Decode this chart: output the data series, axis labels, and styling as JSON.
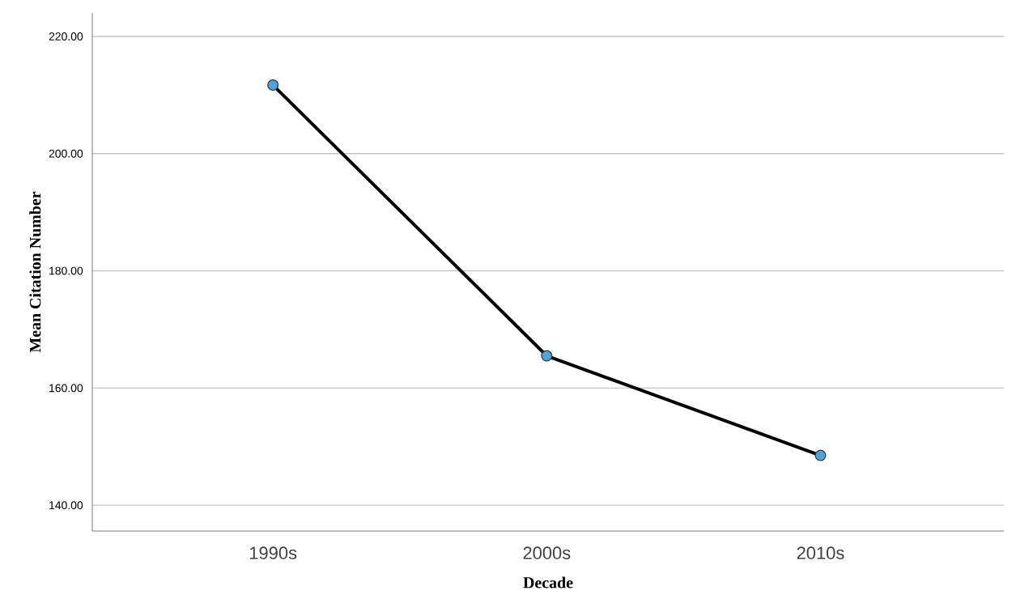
{
  "chart_data": {
    "type": "line",
    "xlabel": "Decade",
    "ylabel": "Mean Citation Number",
    "categories": [
      "1990s",
      "2000s",
      "2010s"
    ],
    "series": [
      {
        "color": "#4da3dc",
        "values": [
          211.7,
          165.5,
          148.5
        ]
      }
    ],
    "ylim": [
      135.6,
      224
    ],
    "yticks": [
      {
        "value": 140,
        "label": "140.00"
      },
      {
        "value": 160,
        "label": "160.00"
      },
      {
        "value": 180,
        "label": "180.00"
      },
      {
        "value": 200,
        "label": "200.00"
      },
      {
        "value": 220,
        "label": "220.00"
      }
    ],
    "grid": "y",
    "marker": "circle",
    "line_style": "solid"
  }
}
